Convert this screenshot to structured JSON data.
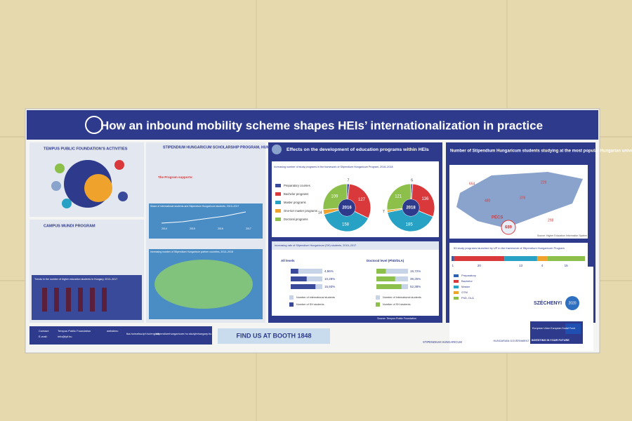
{
  "header": {
    "title": "How an inbound mobility scheme shapes HEIs’ internationalization in practice"
  },
  "tempus": {
    "title": "TEMPUS PUBLIC FOUNDATION’S ACTIVITIES"
  },
  "campus_mundi": {
    "title": "CAMPUS MUNDI PROGRAM",
    "chart_title": "Trends in the number of higher education students in Hungary, 2013–2017"
  },
  "scholarship": {
    "title": "STIPENDIUM HUNGARICUM SCHOLARSHIP PROGRAM, HUNGARY",
    "supports_title": "The Program supports:",
    "chart1_title": "Share of international students and Stipendium Hungaricum students, 2013–2017",
    "years": [
      "2014",
      "2015",
      "2016",
      "2017"
    ],
    "chart2_title": "Increasing number of Stipendium Hungaricum partner countries, 2013–2018"
  },
  "effects": {
    "title": "Effects on the development of education programs within HEIs",
    "donut_title": "Increasing number of study programs in the framework of Stipendium Hungaricum Program, 2016–2018",
    "legend": [
      "Preparatory courses",
      "Bachelor programs",
      "Master programs",
      "One-tier master programs",
      "Doctoral programs"
    ],
    "colors": [
      "#3a4a9a",
      "#d9393a",
      "#27a2c4",
      "#f0a32c",
      "#8cc04a"
    ],
    "donuts": [
      {
        "year": "2016",
        "values": [
          7,
          127,
          158,
          14,
          109
        ]
      },
      {
        "year": "2018",
        "values": [
          6,
          136,
          185,
          7,
          121
        ]
      }
    ],
    "rate_title": "Increasing rate of Stipendium Hungaricum (SH) students, 2015–2017",
    "bar_groups": [
      {
        "title": "All levels",
        "values": [
          4.86,
          10.28,
          15.93
        ],
        "value_labels": [
          "4,86%",
          "10,28%",
          "15,93%"
        ]
      },
      {
        "title": "Doctoral level (PhD/DLA)",
        "values": [
          19.72,
          39.25,
          52.38
        ],
        "value_labels": [
          "19,72%",
          "39,25%",
          "52,38%"
        ]
      }
    ],
    "bar_legend": [
      "Number of international students",
      "Number of SH students"
    ],
    "source": "Source: Tempus Public Foundation"
  },
  "universities": {
    "title": "Number of Stipendium Hungaricum students studying at the most popular Hungarian universities, academic year 2017/2018",
    "city": "PÉCS",
    "city_value": "689",
    "map_labels": [
      "229",
      "376",
      "480",
      "298",
      "654"
    ],
    "source": "Source: Higher Education Information System",
    "programs_title": "53 study programs launched by UP in the framework of Stipendium Hungaricum Program",
    "programs": [
      1,
      20,
      13,
      4,
      15
    ],
    "program_labels": [
      "Preparatory",
      "Bachelor",
      "Master",
      "OTM",
      "PhD, DLA"
    ],
    "program_colors": [
      "#2f5fb0",
      "#d9393a",
      "#27a2c4",
      "#f0a32c",
      "#8cc04a"
    ]
  },
  "footer": {
    "contact_label": "Contact:",
    "contact": "Tempus Public Foundation",
    "email_label": "E-mail:",
    "email": "info@tpf.hu",
    "website_label": "websites:",
    "website1": "tka.hu/nafsa-tpf.hu/english",
    "website2": "stipendiumhungaricum.hu studyinhungary.hu",
    "booth": "FIND US AT BOOTH 1848",
    "sh_logo": "STIPENDIUM HUNGARICUM",
    "szechenyi": "SZÉCHENYI",
    "szechenyi_year": "2020",
    "gov": "HUNGARIAN GOVERNMENT",
    "eu": "European Union European Social Fund",
    "eu_tagline": "INVESTING IN YOUR FUTURE"
  }
}
